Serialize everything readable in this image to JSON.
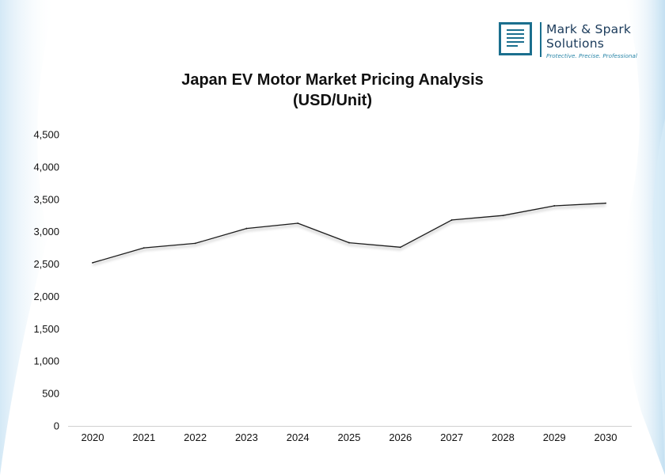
{
  "logo": {
    "name_line1": "Mark & Spark",
    "name_line2": "Solutions",
    "tagline": "Protective. Precise. Professional"
  },
  "chart_data": {
    "type": "line",
    "title": "Japan EV Motor Market Pricing Analysis",
    "subtitle": "(USD/Unit)",
    "xlabel": "",
    "ylabel": "",
    "categories": [
      "2020",
      "2021",
      "2022",
      "2023",
      "2024",
      "2025",
      "2026",
      "2027",
      "2028",
      "2029",
      "2030"
    ],
    "series": [
      {
        "values": [
          2520,
          2750,
          2820,
          3050,
          3130,
          2830,
          2760,
          3180,
          3250,
          3400,
          3440
        ]
      }
    ],
    "ylim": [
      0,
      4500
    ],
    "yticks": [
      0,
      500,
      1000,
      1500,
      2000,
      2500,
      3000,
      3500,
      4000,
      4500
    ],
    "ytick_labels": [
      "0",
      "500",
      "1,000",
      "1,500",
      "2,000",
      "2,500",
      "3,000",
      "3,500",
      "4,000",
      "4,500"
    ],
    "grid": false,
    "line_color": "#1a1a1a"
  }
}
